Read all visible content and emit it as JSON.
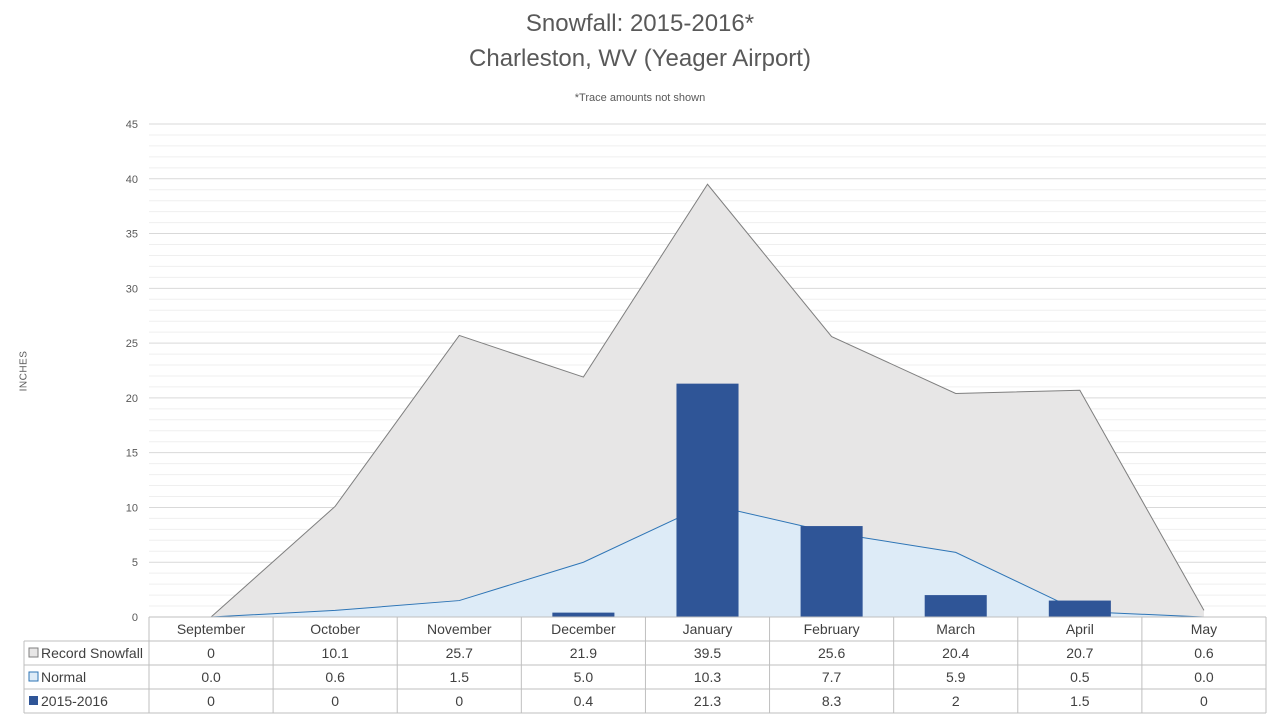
{
  "chart_data": {
    "type": "area",
    "title": "Snowfall: 2015-2016*",
    "subtitle": "Charleston, WV (Yeager Airport)",
    "note": "*Trace amounts not shown",
    "ylabel": "INCHES",
    "xlabel": "",
    "ylim": [
      0,
      45
    ],
    "yticks": [
      0,
      5,
      10,
      15,
      20,
      25,
      30,
      35,
      40,
      45
    ],
    "grid": true,
    "legend_placement": "data-table-left",
    "categories": [
      "September",
      "October",
      "November",
      "December",
      "January",
      "February",
      "March",
      "April",
      "May"
    ],
    "series": [
      {
        "name": "Record Snowfall",
        "kind": "area",
        "color": "#e7e6e6",
        "line_color": "#7f7f7f",
        "values": [
          0,
          10.1,
          25.7,
          21.9,
          39.5,
          25.6,
          20.4,
          20.7,
          0.6
        ],
        "labels": [
          "0",
          "10.1",
          "25.7",
          "21.9",
          "39.5",
          "25.6",
          "20.4",
          "20.7",
          "0.6"
        ]
      },
      {
        "name": "Normal",
        "kind": "area",
        "color": "#ddebf7",
        "line_color": "#2e75b6",
        "values": [
          0.0,
          0.6,
          1.5,
          5.0,
          10.3,
          7.7,
          5.9,
          0.5,
          0.0
        ],
        "labels": [
          "0.0",
          "0.6",
          "1.5",
          "5.0",
          "10.3",
          "7.7",
          "5.9",
          "0.5",
          "0.0"
        ]
      },
      {
        "name": "2015-2016",
        "kind": "bar",
        "color": "#2f5597",
        "values": [
          0,
          0,
          0,
          0.4,
          21.3,
          8.3,
          2,
          1.5,
          0
        ],
        "labels": [
          "0",
          "0",
          "0",
          "0.4",
          "21.3",
          "8.3",
          "2",
          "1.5",
          "0"
        ]
      }
    ]
  }
}
